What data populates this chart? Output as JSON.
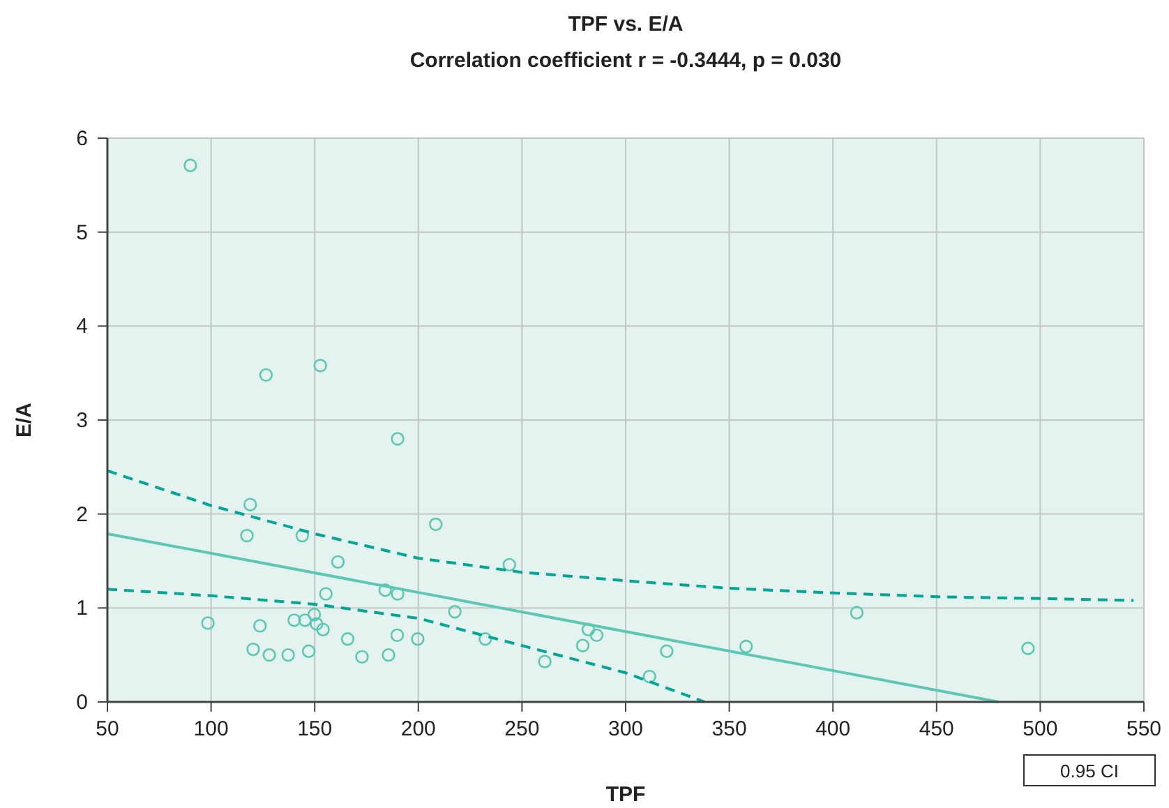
{
  "chart_data": {
    "type": "scatter",
    "title": "TPF vs. E/A",
    "subtitle": "Correlation coefficient r = -0.3444, p = 0.030",
    "xlabel": "TPF",
    "ylabel": "E/A",
    "xlim": [
      50,
      550
    ],
    "xticks": [
      50,
      100,
      150,
      200,
      250,
      300,
      350,
      400,
      450,
      500,
      550
    ],
    "ylim": [
      0,
      6
    ],
    "yticks": [
      0,
      1,
      2,
      3,
      4,
      5,
      6
    ],
    "grid": true,
    "marker": "circle",
    "annotations": [
      "0.95 CI"
    ],
    "series": [
      {
        "color": "#5cc8b4",
        "x": [
          90.0,
          126.5,
          152.7,
          190.0,
          118.9,
          117.3,
          144.0,
          208.4,
          161.2,
          155.4,
          184.0,
          190.0,
          98.5,
          123.6,
          140.1,
          145.3,
          149.8,
          150.9,
          154.0,
          165.9,
          199.7,
          189.8,
          120.3,
          128.1,
          137.2,
          147.1,
          172.8,
          185.6,
          217.6,
          243.9,
          232.3,
          261.0,
          282.0,
          286.0,
          279.3,
          311.5,
          319.8,
          358.1,
          411.5,
          494.1
        ],
        "values": [
          5.71,
          3.48,
          3.58,
          2.8,
          2.1,
          1.77,
          1.77,
          1.89,
          1.49,
          1.15,
          1.19,
          1.15,
          0.84,
          0.81,
          0.87,
          0.87,
          0.93,
          0.83,
          0.77,
          0.67,
          0.67,
          0.71,
          0.56,
          0.5,
          0.5,
          0.54,
          0.48,
          0.5,
          0.96,
          1.46,
          0.67,
          0.43,
          0.77,
          0.71,
          0.6,
          0.27,
          0.54,
          0.59,
          0.95,
          0.57
        ]
      },
      {
        "type": "line",
        "color": "#5cc8b4",
        "line_style": "solid",
        "marker": "none",
        "x": [
          50,
          480
        ],
        "values": [
          1.79,
          0
        ]
      },
      {
        "type": "line",
        "color": "#00a693",
        "line_style": "dashed",
        "marker": "none",
        "x": [
          50,
          100,
          150,
          200,
          250,
          300,
          350,
          400,
          450,
          500,
          545
        ],
        "values": [
          2.46,
          2.09,
          1.79,
          1.53,
          1.38,
          1.29,
          1.21,
          1.16,
          1.12,
          1.1,
          1.08
        ]
      },
      {
        "type": "line",
        "color": "#00a693",
        "line_style": "dashed",
        "marker": "none",
        "x": [
          50,
          100,
          150,
          200,
          250,
          300,
          338
        ],
        "values": [
          1.2,
          1.13,
          1.04,
          0.89,
          0.6,
          0.31,
          0
        ]
      }
    ]
  }
}
